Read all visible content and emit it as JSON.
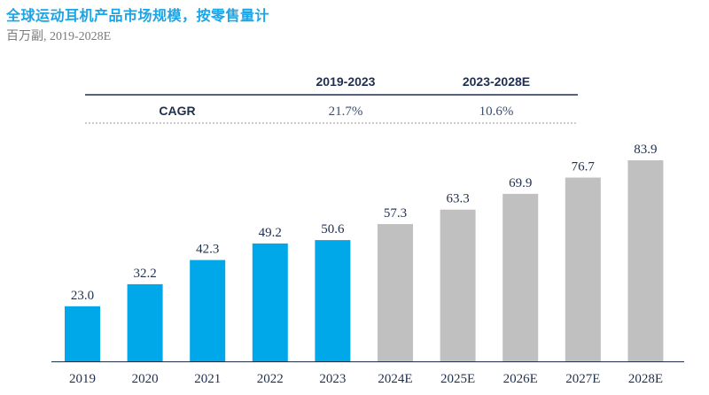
{
  "header": {
    "title": "全球运动耳机产品市场规模，按零售量计",
    "subtitle": "百万副, 2019-2028E"
  },
  "cagr_table": {
    "row_label": "CAGR",
    "columns": [
      {
        "period": "2019-2023",
        "value": "21.7%"
      },
      {
        "period": "2023-2028E",
        "value": "10.6%"
      }
    ]
  },
  "colors": {
    "historical": "#00a8ea",
    "forecast": "#c0c0c0",
    "title": "#1aa5e8"
  },
  "chart_data": {
    "type": "bar",
    "title": "全球运动耳机产品市场规模，按零售量计",
    "subtitle": "百万副, 2019-2028E",
    "categories": [
      "2019",
      "2020",
      "2021",
      "2022",
      "2023",
      "2024E",
      "2025E",
      "2026E",
      "2027E",
      "2028E"
    ],
    "values": [
      23.0,
      32.2,
      42.3,
      49.2,
      50.6,
      57.3,
      63.3,
      69.9,
      76.7,
      83.9
    ],
    "value_labels": [
      "23.0",
      "32.2",
      "42.3",
      "49.2",
      "50.6",
      "57.3",
      "63.3",
      "69.9",
      "76.7",
      "83.9"
    ],
    "historical_count": 5,
    "xlabel": "",
    "ylabel": "",
    "ylim": [
      0,
      83.9
    ],
    "grid": false,
    "legend": "none"
  }
}
